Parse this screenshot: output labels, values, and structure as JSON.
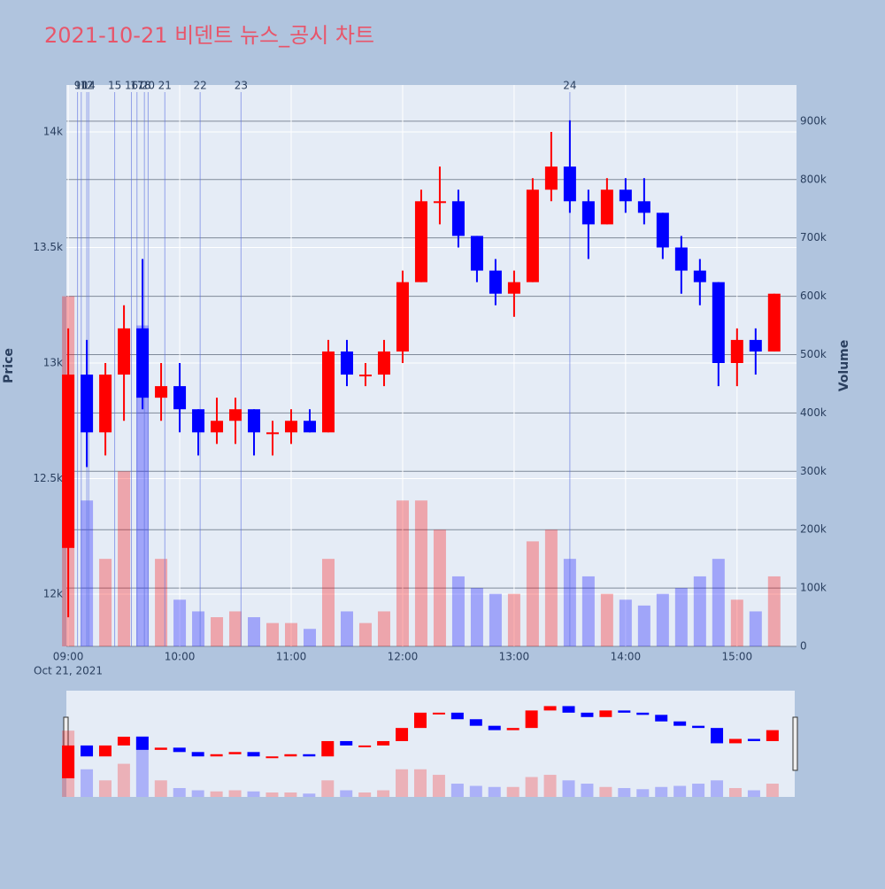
{
  "chart_data": {
    "type": "candlestick",
    "title": "2021-10-21 비덴트 뉴스_공시 차트",
    "y_label": "Price",
    "y2_label": "Volume",
    "date_label": "Oct 21, 2021",
    "up_color": "#ff0000",
    "down_color": "#0000ff",
    "title_color": "#e8556a",
    "x": [
      "2021-10-21 09:00",
      "2021-10-21 09:10",
      "2021-10-21 09:20",
      "2021-10-21 09:30",
      "2021-10-21 09:40",
      "2021-10-21 09:50",
      "2021-10-21 10:00",
      "2021-10-21 10:10",
      "2021-10-21 10:20",
      "2021-10-21 10:30",
      "2021-10-21 10:40",
      "2021-10-21 10:50",
      "2021-10-21 11:00",
      "2021-10-21 11:10",
      "2021-10-21 11:20",
      "2021-10-21 11:30",
      "2021-10-21 11:40",
      "2021-10-21 11:50",
      "2021-10-21 12:00",
      "2021-10-21 12:10",
      "2021-10-21 12:20",
      "2021-10-21 12:30",
      "2021-10-21 12:40",
      "2021-10-21 12:50",
      "2021-10-21 13:00",
      "2021-10-21 13:10",
      "2021-10-21 13:20",
      "2021-10-21 13:30",
      "2021-10-21 13:40",
      "2021-10-21 13:50",
      "2021-10-21 14:00",
      "2021-10-21 14:10",
      "2021-10-21 14:20",
      "2021-10-21 14:30",
      "2021-10-21 14:40",
      "2021-10-21 14:50",
      "2021-10-21 15:00",
      "2021-10-21 15:10",
      "2021-10-21 15:20"
    ],
    "open": [
      12200,
      12950,
      12700,
      12950,
      13150,
      12850,
      12900,
      12800,
      12700,
      12750,
      12800,
      12700,
      12700,
      12750,
      12700,
      13050,
      12950,
      12950,
      13050,
      13350,
      13700,
      13700,
      13550,
      13400,
      13300,
      13350,
      13750,
      13850,
      13700,
      13600,
      13750,
      13700,
      13650,
      13500,
      13400,
      13350,
      13000,
      13100,
      13050
    ],
    "high": [
      13150,
      13100,
      13000,
      13250,
      13450,
      13000,
      13000,
      12800,
      12850,
      12850,
      12800,
      12750,
      12800,
      12800,
      13100,
      13100,
      13000,
      13100,
      13400,
      13750,
      13850,
      13750,
      13550,
      13450,
      13400,
      13800,
      14000,
      14050,
      13750,
      13800,
      13800,
      13800,
      13650,
      13550,
      13450,
      13350,
      13150,
      13150,
      13300
    ],
    "low": [
      11900,
      12550,
      12600,
      12750,
      12800,
      12750,
      12700,
      12600,
      12650,
      12650,
      12600,
      12600,
      12650,
      12700,
      12700,
      12900,
      12900,
      12900,
      13000,
      13350,
      13600,
      13500,
      13350,
      13250,
      13200,
      13350,
      13700,
      13650,
      13450,
      13600,
      13650,
      13600,
      13450,
      13300,
      13250,
      12900,
      12900,
      12950,
      13050
    ],
    "close": [
      12950,
      12700,
      12950,
      13150,
      12850,
      12900,
      12800,
      12700,
      12750,
      12800,
      12700,
      12700,
      12750,
      12700,
      13050,
      12950,
      12950,
      13050,
      13350,
      13700,
      13700,
      13550,
      13400,
      13300,
      13350,
      13750,
      13850,
      13700,
      13600,
      13750,
      13700,
      13650,
      13500,
      13400,
      13350,
      13000,
      13100,
      13050,
      13300
    ],
    "volume": [
      600000,
      250000,
      150000,
      300000,
      550000,
      150000,
      80000,
      60000,
      50000,
      60000,
      50000,
      40000,
      40000,
      30000,
      150000,
      60000,
      40000,
      60000,
      250000,
      250000,
      200000,
      120000,
      100000,
      90000,
      90000,
      180000,
      200000,
      150000,
      120000,
      90000,
      80000,
      70000,
      90000,
      100000,
      120000,
      150000,
      80000,
      60000,
      120000
    ],
    "events": [
      {
        "x": "2021-10-21 09:05",
        "label": "9"
      },
      {
        "x": "2021-10-21 09:07",
        "label": "10"
      },
      {
        "x": "2021-10-21 09:10",
        "label": "12"
      },
      {
        "x": "2021-10-21 09:11",
        "label": "14"
      },
      {
        "x": "2021-10-21 09:25",
        "label": "15"
      },
      {
        "x": "2021-10-21 09:34",
        "label": "16"
      },
      {
        "x": "2021-10-21 09:37",
        "label": "17"
      },
      {
        "x": "2021-10-21 09:41",
        "label": "18"
      },
      {
        "x": "2021-10-21 09:43",
        "label": "20"
      },
      {
        "x": "2021-10-21 09:52",
        "label": "21"
      },
      {
        "x": "2021-10-21 10:11",
        "label": "22"
      },
      {
        "x": "2021-10-21 10:33",
        "label": "23"
      },
      {
        "x": "2021-10-21 13:30",
        "label": "24"
      }
    ],
    "xlim": [
      "2021-10-21 08:59",
      "2021-10-21 15:32"
    ],
    "xticks": [
      {
        "value": "2021-10-21 09:00",
        "label": "09:00"
      },
      {
        "value": "2021-10-21 10:00",
        "label": "10:00"
      },
      {
        "value": "2021-10-21 11:00",
        "label": "11:00"
      },
      {
        "value": "2021-10-21 12:00",
        "label": "12:00"
      },
      {
        "value": "2021-10-21 13:00",
        "label": "13:00"
      },
      {
        "value": "2021-10-21 14:00",
        "label": "14:00"
      },
      {
        "value": "2021-10-21 15:00",
        "label": "15:00"
      }
    ],
    "ylim": [
      11774,
      14203
    ],
    "yticks": [
      {
        "value": 12000,
        "label": "12k"
      },
      {
        "value": 12500,
        "label": "12.5k"
      },
      {
        "value": 13000,
        "label": "13k"
      },
      {
        "value": 13500,
        "label": "13.5k"
      },
      {
        "value": 14000,
        "label": "14k"
      }
    ],
    "y2lim": [
      0,
      962000
    ],
    "y2ticks": [
      0,
      {
        "value": 100000,
        "label": "100k"
      },
      {
        "value": 200000,
        "label": "200k"
      },
      {
        "value": 300000,
        "label": "300k"
      },
      {
        "value": 400000,
        "label": "400k"
      },
      {
        "value": 500000,
        "label": "500k"
      },
      {
        "value": 600000,
        "label": "600k"
      },
      {
        "value": 700000,
        "label": "700k"
      },
      {
        "value": 800000,
        "label": "800k"
      },
      {
        "value": 900000,
        "label": "900k"
      }
    ],
    "grid": true,
    "range_slider": true
  }
}
